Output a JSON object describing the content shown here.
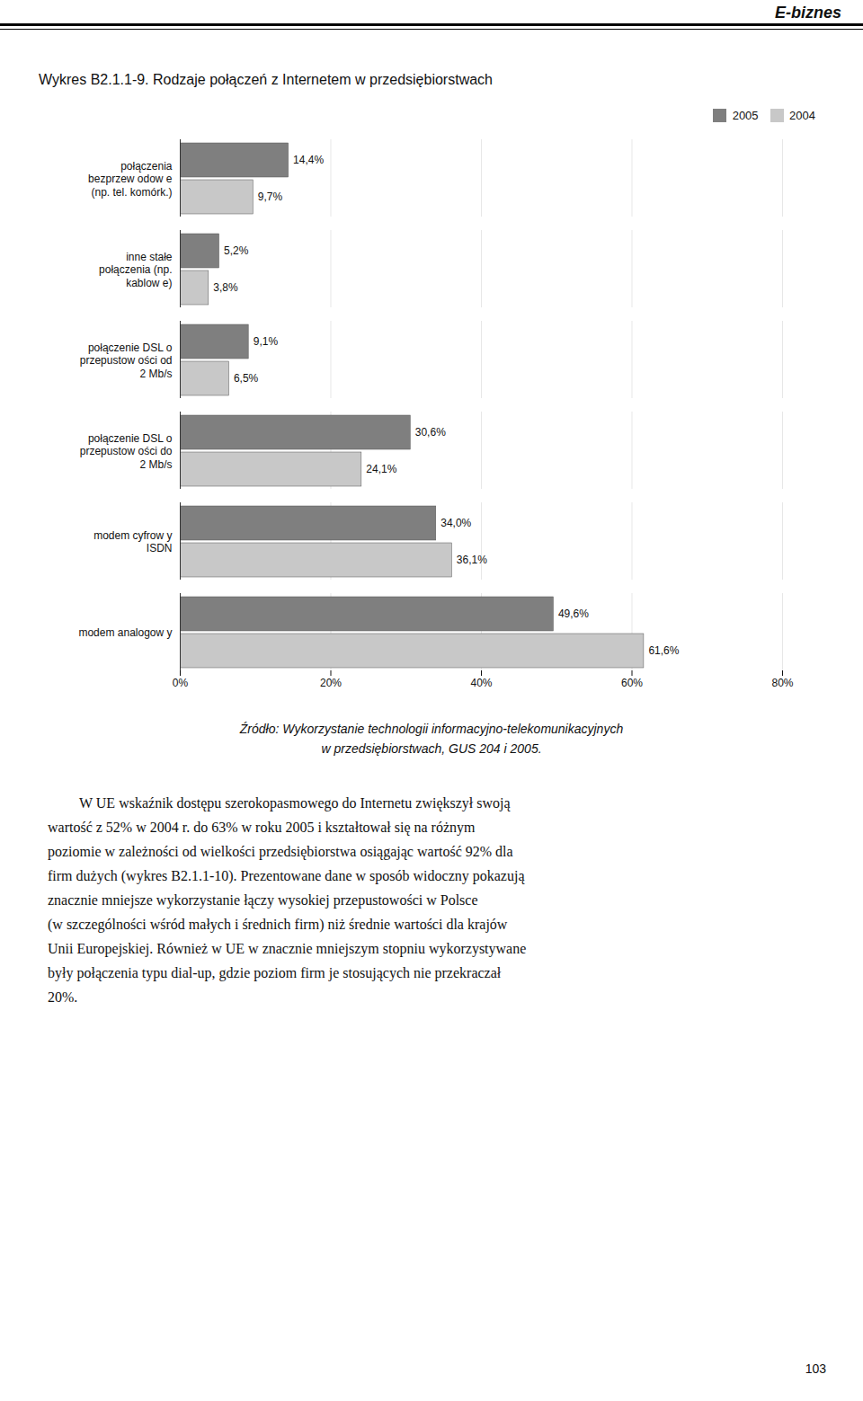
{
  "chart_data": {
    "type": "bar",
    "orientation": "horizontal",
    "title": "Wykres B2.1.1-9. Rodzaje połączeń z Internetem w przedsiębiorstwach",
    "header": "E-biznes",
    "categories": [
      "połączenia\nbezprzew odow e\n(np. tel. komórk.)",
      "inne stałe\npołączenia (np.\nkablow e)",
      "połączenie DSL o\nprzepustow ości od\n2 Mb/s",
      "połączenie DSL o\nprzepustow ości do\n2 Mb/s",
      "modem cyfrow y\nISDN",
      "modem analogow y"
    ],
    "series": [
      {
        "name": "2005",
        "color": "#7f7f7f",
        "values": [
          14.4,
          5.2,
          9.1,
          30.6,
          34.0,
          49.6
        ],
        "value_labels": [
          "14,4%",
          "5,2%",
          "9,1%",
          "30,6%",
          "34,0%",
          "49,6%"
        ]
      },
      {
        "name": "2004",
        "color": "#c8c8c8",
        "values": [
          9.7,
          3.8,
          6.5,
          24.1,
          36.1,
          61.6
        ],
        "value_labels": [
          "9,7%",
          "3,8%",
          "6,5%",
          "24,1%",
          "36,1%",
          "61,6%"
        ]
      }
    ],
    "xlim": [
      0,
      80
    ],
    "xticks": [
      {
        "value": 0,
        "label": "0%"
      },
      {
        "value": 20,
        "label": "20%"
      },
      {
        "value": 40,
        "label": "40%"
      },
      {
        "value": 60,
        "label": "60%"
      },
      {
        "value": 80,
        "label": "80%"
      }
    ],
    "grid": true,
    "legend": "upper right",
    "data_labels": true,
    "source": [
      "Źródło: Wykorzystanie technologii informacyjno-telekomunikacyjnych",
      "w przedsiębiorstwach, GUS 204 i 2005."
    ],
    "body_text": [
      "W UE wskaźnik dostępu szerokopasmowego do Internetu zwiększył swoją",
      "wartość z 52% w 2004 r. do 63% w roku 2005 i kształtował się na różnym",
      "poziomie w zależności od wielkości przedsiębiorstwa osiągając wartość 92% dla",
      "firm dużych (wykres B2.1.1-10). Prezentowane dane w sposób widoczny pokazują",
      "znacznie mniejsze wykorzystanie łączy wysokiej przepustowości w Polsce",
      "(w szczególności wśród małych i średnich firm) niż średnie wartości dla krajów",
      "Unii Europejskiej. Również w UE w znacznie mniejszym stopniu wykorzystywane",
      "były połączenia typu dial-up, gdzie poziom firm je stosujących nie przekraczał",
      "20%."
    ],
    "page_number": "103"
  }
}
